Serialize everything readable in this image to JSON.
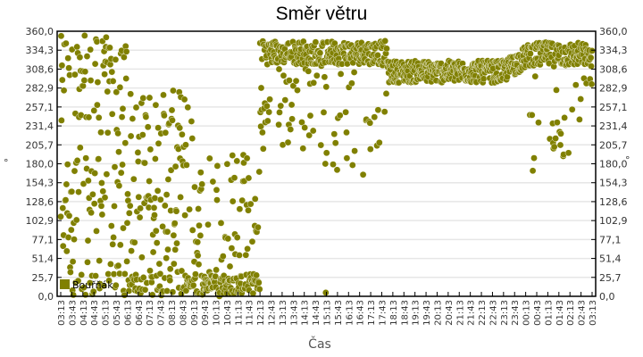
{
  "title": "Směr větru",
  "chart_data": {
    "type": "scatter",
    "title": "Směr větru",
    "xlabel": "Čas",
    "ylabel": "°",
    "ylabel_right": "°",
    "ylim": [
      0,
      360
    ],
    "yticks": [
      "0,0",
      "25,7",
      "51,4",
      "77,1",
      "102,9",
      "128,6",
      "154,3",
      "180,0",
      "205,7",
      "231,4",
      "257,1",
      "282,9",
      "308,6",
      "334,3",
      "360,0"
    ],
    "xticks": [
      "03:13",
      "03:43",
      "04:13",
      "04:43",
      "05:13",
      "05:43",
      "06:13",
      "06:43",
      "07:13",
      "07:43",
      "08:13",
      "08:43",
      "09:13",
      "09:43",
      "10:13",
      "10:43",
      "11:13",
      "11:43",
      "12:13",
      "12:43",
      "13:13",
      "13:43",
      "14:13",
      "14:43",
      "15:13",
      "15:43",
      "16:13",
      "16:43",
      "17:13",
      "17:43",
      "18:13",
      "18:43",
      "19:13",
      "19:43",
      "20:13",
      "20:43",
      "21:13",
      "21:43",
      "22:13",
      "22:43",
      "23:13",
      "23:43",
      "00:13",
      "00:43",
      "01:13",
      "01:43",
      "02:13",
      "02:43",
      "03:13"
    ],
    "grid": true,
    "legend_position": "inside-bottom-left",
    "series": [
      {
        "name": "Bouřňák",
        "color": "#808000",
        "description": "Wind direction samples (~1-min interval). 03:13–12:13 widely scattered 0–360° with concentration near 0–30° after 09:00; 12:13–18:00 mostly 300–350° with scattered points down to ~5°; 18:00–00:00 tight band 290–320°; 00:00–03:13 band 310–345° with outliers near 170–260°.",
        "segments": [
          {
            "from": "03:13",
            "to": "06:13",
            "range": [
              0,
              355
            ],
            "density": "high",
            "cluster": "spread"
          },
          {
            "from": "06:13",
            "to": "09:13",
            "range": [
              0,
              280
            ],
            "density": "high",
            "cluster": "spread"
          },
          {
            "from": "09:13",
            "to": "12:13",
            "range": [
              0,
              200
            ],
            "density": "high",
            "cluster": "low band 5–30"
          },
          {
            "from": "12:13",
            "to": "14:43",
            "range": [
              170,
              350
            ],
            "density": "high",
            "cluster": "upper band 310–345"
          },
          {
            "from": "14:43",
            "to": "18:00",
            "range": [
              5,
              350
            ],
            "density": "high",
            "cluster": "upper band 315–345"
          },
          {
            "from": "18:00",
            "to": "00:13",
            "range": [
              245,
              330
            ],
            "density": "high",
            "cluster": "band 290–320"
          },
          {
            "from": "00:13",
            "to": "03:13",
            "range": [
              170,
              350
            ],
            "density": "high",
            "cluster": "band 310–345"
          }
        ]
      }
    ]
  },
  "legend": {
    "label": "Bouřňák",
    "color": "#808000"
  },
  "colors": {
    "series": "#808000",
    "grid": "#e6e6e6",
    "axis": "#000000",
    "text": "#333333"
  }
}
